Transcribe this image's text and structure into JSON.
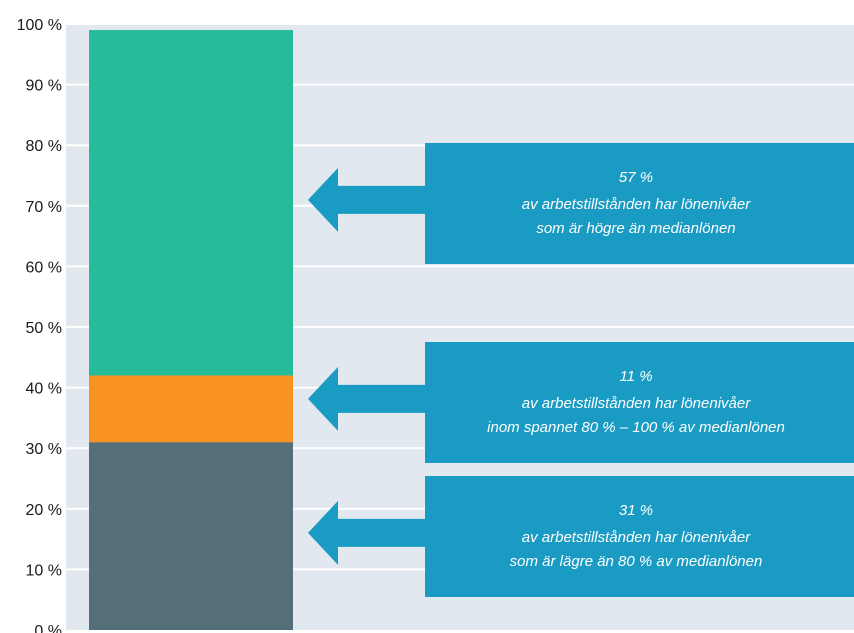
{
  "chart_data": {
    "type": "bar",
    "stacked": true,
    "ylim": [
      0,
      100
    ],
    "y_ticks": [
      "0 %",
      "10 %",
      "20 %",
      "30 %",
      "40 %",
      "50 %",
      "60 %",
      "70 %",
      "80 %",
      "90 %",
      "100 %"
    ],
    "segments": [
      {
        "value": 31,
        "color": "#546E7A"
      },
      {
        "value": 11,
        "color": "#F7931E"
      },
      {
        "value": 57,
        "color": "#26BC9A"
      }
    ],
    "callouts": [
      {
        "line1": "57 %",
        "line2": "av arbetstillstånden har lönenivåer",
        "line3": "som är högre än medianlönen"
      },
      {
        "line1": "11 %",
        "line2": "av arbetstillstånden har lönenivåer",
        "line3": "inom spannet 80 % – 100 % av medianlönen"
      },
      {
        "line1": "31 %",
        "line2": "av arbetstillstånden har lönenivåer",
        "line3": "som är lägre än 80 % av medianlönen"
      }
    ],
    "grid": true,
    "plot_background": "#E1E8EF",
    "callout_color": "#1A9BC4"
  }
}
